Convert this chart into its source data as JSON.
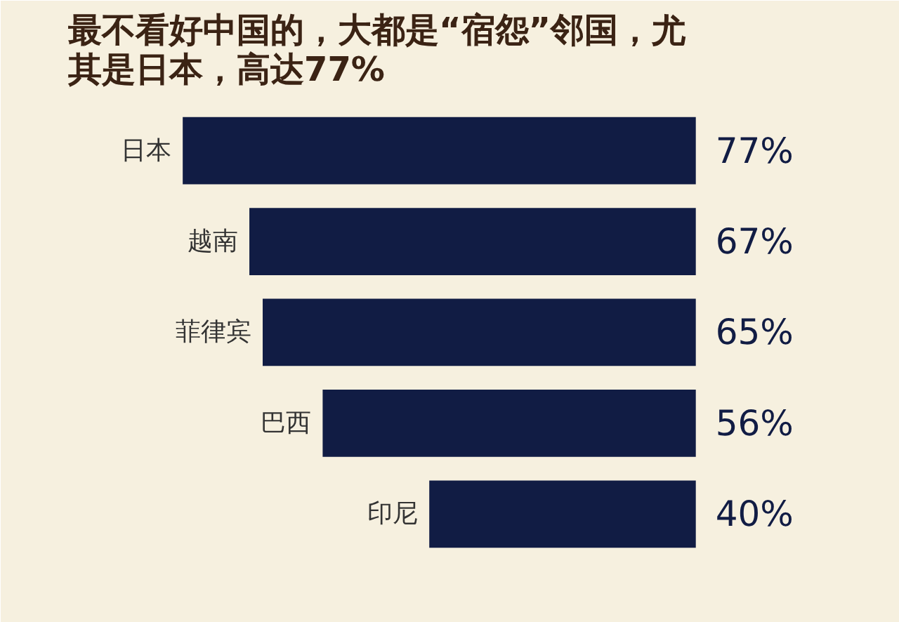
{
  "chart_data": {
    "type": "bar",
    "orientation": "horizontal",
    "title": "最不看好中国的，大都是“宿怨”邻国，尤其是日本，高达77%",
    "categories": [
      "日本",
      "越南",
      "菲律宾",
      "巴西",
      "印尼"
    ],
    "values": [
      77,
      67,
      65,
      56,
      40
    ],
    "value_labels": [
      "77%",
      "67%",
      "65%",
      "56%",
      "40%"
    ],
    "color": "#111c44"
  }
}
